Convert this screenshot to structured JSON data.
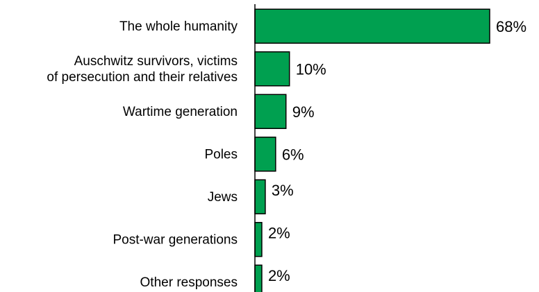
{
  "colors": {
    "bar_fill": "#00A050",
    "bar_stroke": "#000000",
    "axis": "#000000",
    "text": "#000000"
  },
  "chart_data": {
    "type": "bar",
    "orientation": "horizontal",
    "title": "",
    "xlabel": "",
    "ylabel": "",
    "xlim": [
      0,
      68
    ],
    "grid": false,
    "legend": "none",
    "categories": [
      [
        "The whole humanity"
      ],
      [
        "Auschwitz survivors, victims",
        "of persecution and their relatives"
      ],
      [
        "Wartime generation"
      ],
      [
        "Poles"
      ],
      [
        "Jews"
      ],
      [
        "Post-war generations"
      ],
      [
        "Other responses"
      ]
    ],
    "values": [
      68,
      10,
      9,
      6,
      3,
      2,
      2
    ],
    "value_labels": [
      "68%",
      "10%",
      "9%",
      "6%",
      "3%",
      "2%",
      "2%"
    ]
  }
}
